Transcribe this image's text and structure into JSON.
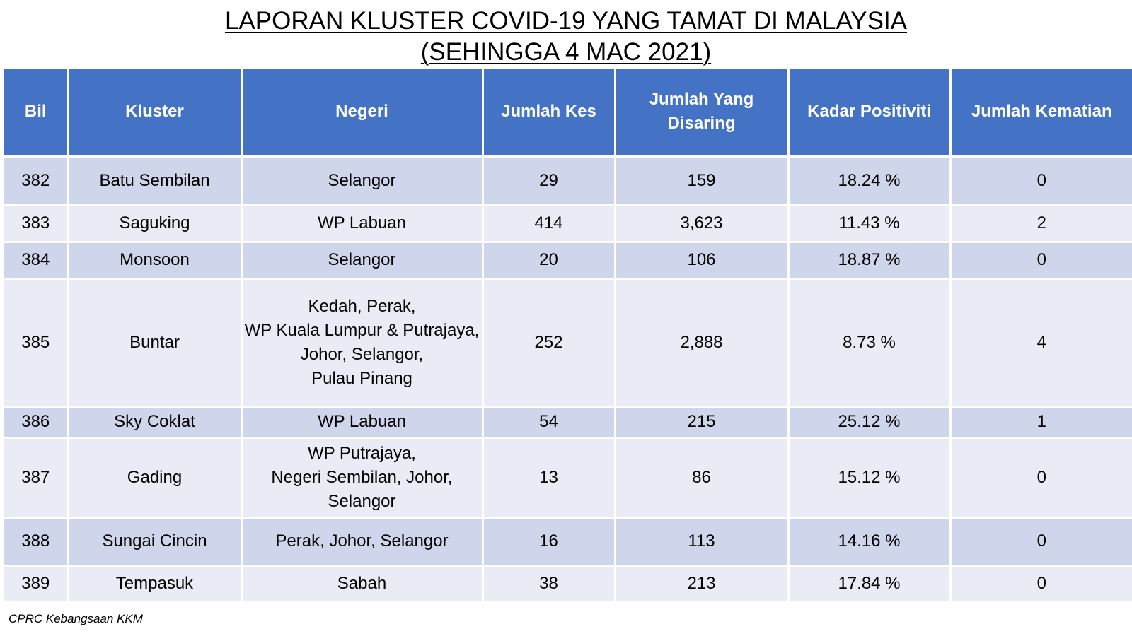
{
  "title": {
    "line1": "LAPORAN KLUSTER COVID-19 YANG TAMAT DI MALAYSIA",
    "line2": "(SEHINGGA 4 MAC 2021)"
  },
  "table": {
    "headers": {
      "bil": "Bil",
      "kluster": "Kluster",
      "negeri": "Negeri",
      "jumlah_kes": "Jumlah Kes",
      "jumlah_disaring_line1": "Jumlah Yang",
      "jumlah_disaring_line2": "Disaring",
      "kadar_positiviti": "Kadar Positiviti",
      "jumlah_kematian": "Jumlah Kematian"
    },
    "rows": [
      {
        "bil": "382",
        "kluster": "Batu Sembilan",
        "negeri": [
          "Selangor"
        ],
        "jumlah_kes": "29",
        "jumlah_disaring": "159",
        "kadar_positiviti": "18.24 %",
        "jumlah_kematian": "0"
      },
      {
        "bil": "383",
        "kluster": "Saguking",
        "negeri": [
          "WP Labuan"
        ],
        "jumlah_kes": "414",
        "jumlah_disaring": "3,623",
        "kadar_positiviti": "11.43 %",
        "jumlah_kematian": "2"
      },
      {
        "bil": "384",
        "kluster": "Monsoon",
        "negeri": [
          "Selangor"
        ],
        "jumlah_kes": "20",
        "jumlah_disaring": "106",
        "kadar_positiviti": "18.87 %",
        "jumlah_kematian": "0"
      },
      {
        "bil": "385",
        "kluster": "Buntar",
        "negeri": [
          "Kedah, Perak,",
          "WP Kuala Lumpur & Putrajaya,",
          "Johor, Selangor,",
          "Pulau Pinang"
        ],
        "jumlah_kes": "252",
        "jumlah_disaring": "2,888",
        "kadar_positiviti": "8.73 %",
        "jumlah_kematian": "4"
      },
      {
        "bil": "386",
        "kluster": "Sky Coklat",
        "negeri": [
          "WP Labuan"
        ],
        "jumlah_kes": "54",
        "jumlah_disaring": "215",
        "kadar_positiviti": "25.12 %",
        "jumlah_kematian": "1"
      },
      {
        "bil": "387",
        "kluster": "Gading",
        "negeri": [
          "WP Putrajaya,",
          "Negeri Sembilan, Johor,",
          "Selangor"
        ],
        "jumlah_kes": "13",
        "jumlah_disaring": "86",
        "kadar_positiviti": "15.12 %",
        "jumlah_kematian": "0"
      },
      {
        "bil": "388",
        "kluster": "Sungai Cincin",
        "negeri": [
          "Perak, Johor, Selangor"
        ],
        "jumlah_kes": "16",
        "jumlah_disaring": "113",
        "kadar_positiviti": "14.16 %",
        "jumlah_kematian": "0"
      },
      {
        "bil": "389",
        "kluster": "Tempasuk",
        "negeri": [
          "Sabah"
        ],
        "jumlah_kes": "38",
        "jumlah_disaring": "213",
        "kadar_positiviti": "17.84 %",
        "jumlah_kematian": "0"
      }
    ]
  },
  "footer": {
    "source": "CPRC Kebangsaan KKM"
  },
  "colors": {
    "header_bg": "#4472c4",
    "row_dark": "#cfd5ea",
    "row_light": "#e9ebf5"
  }
}
